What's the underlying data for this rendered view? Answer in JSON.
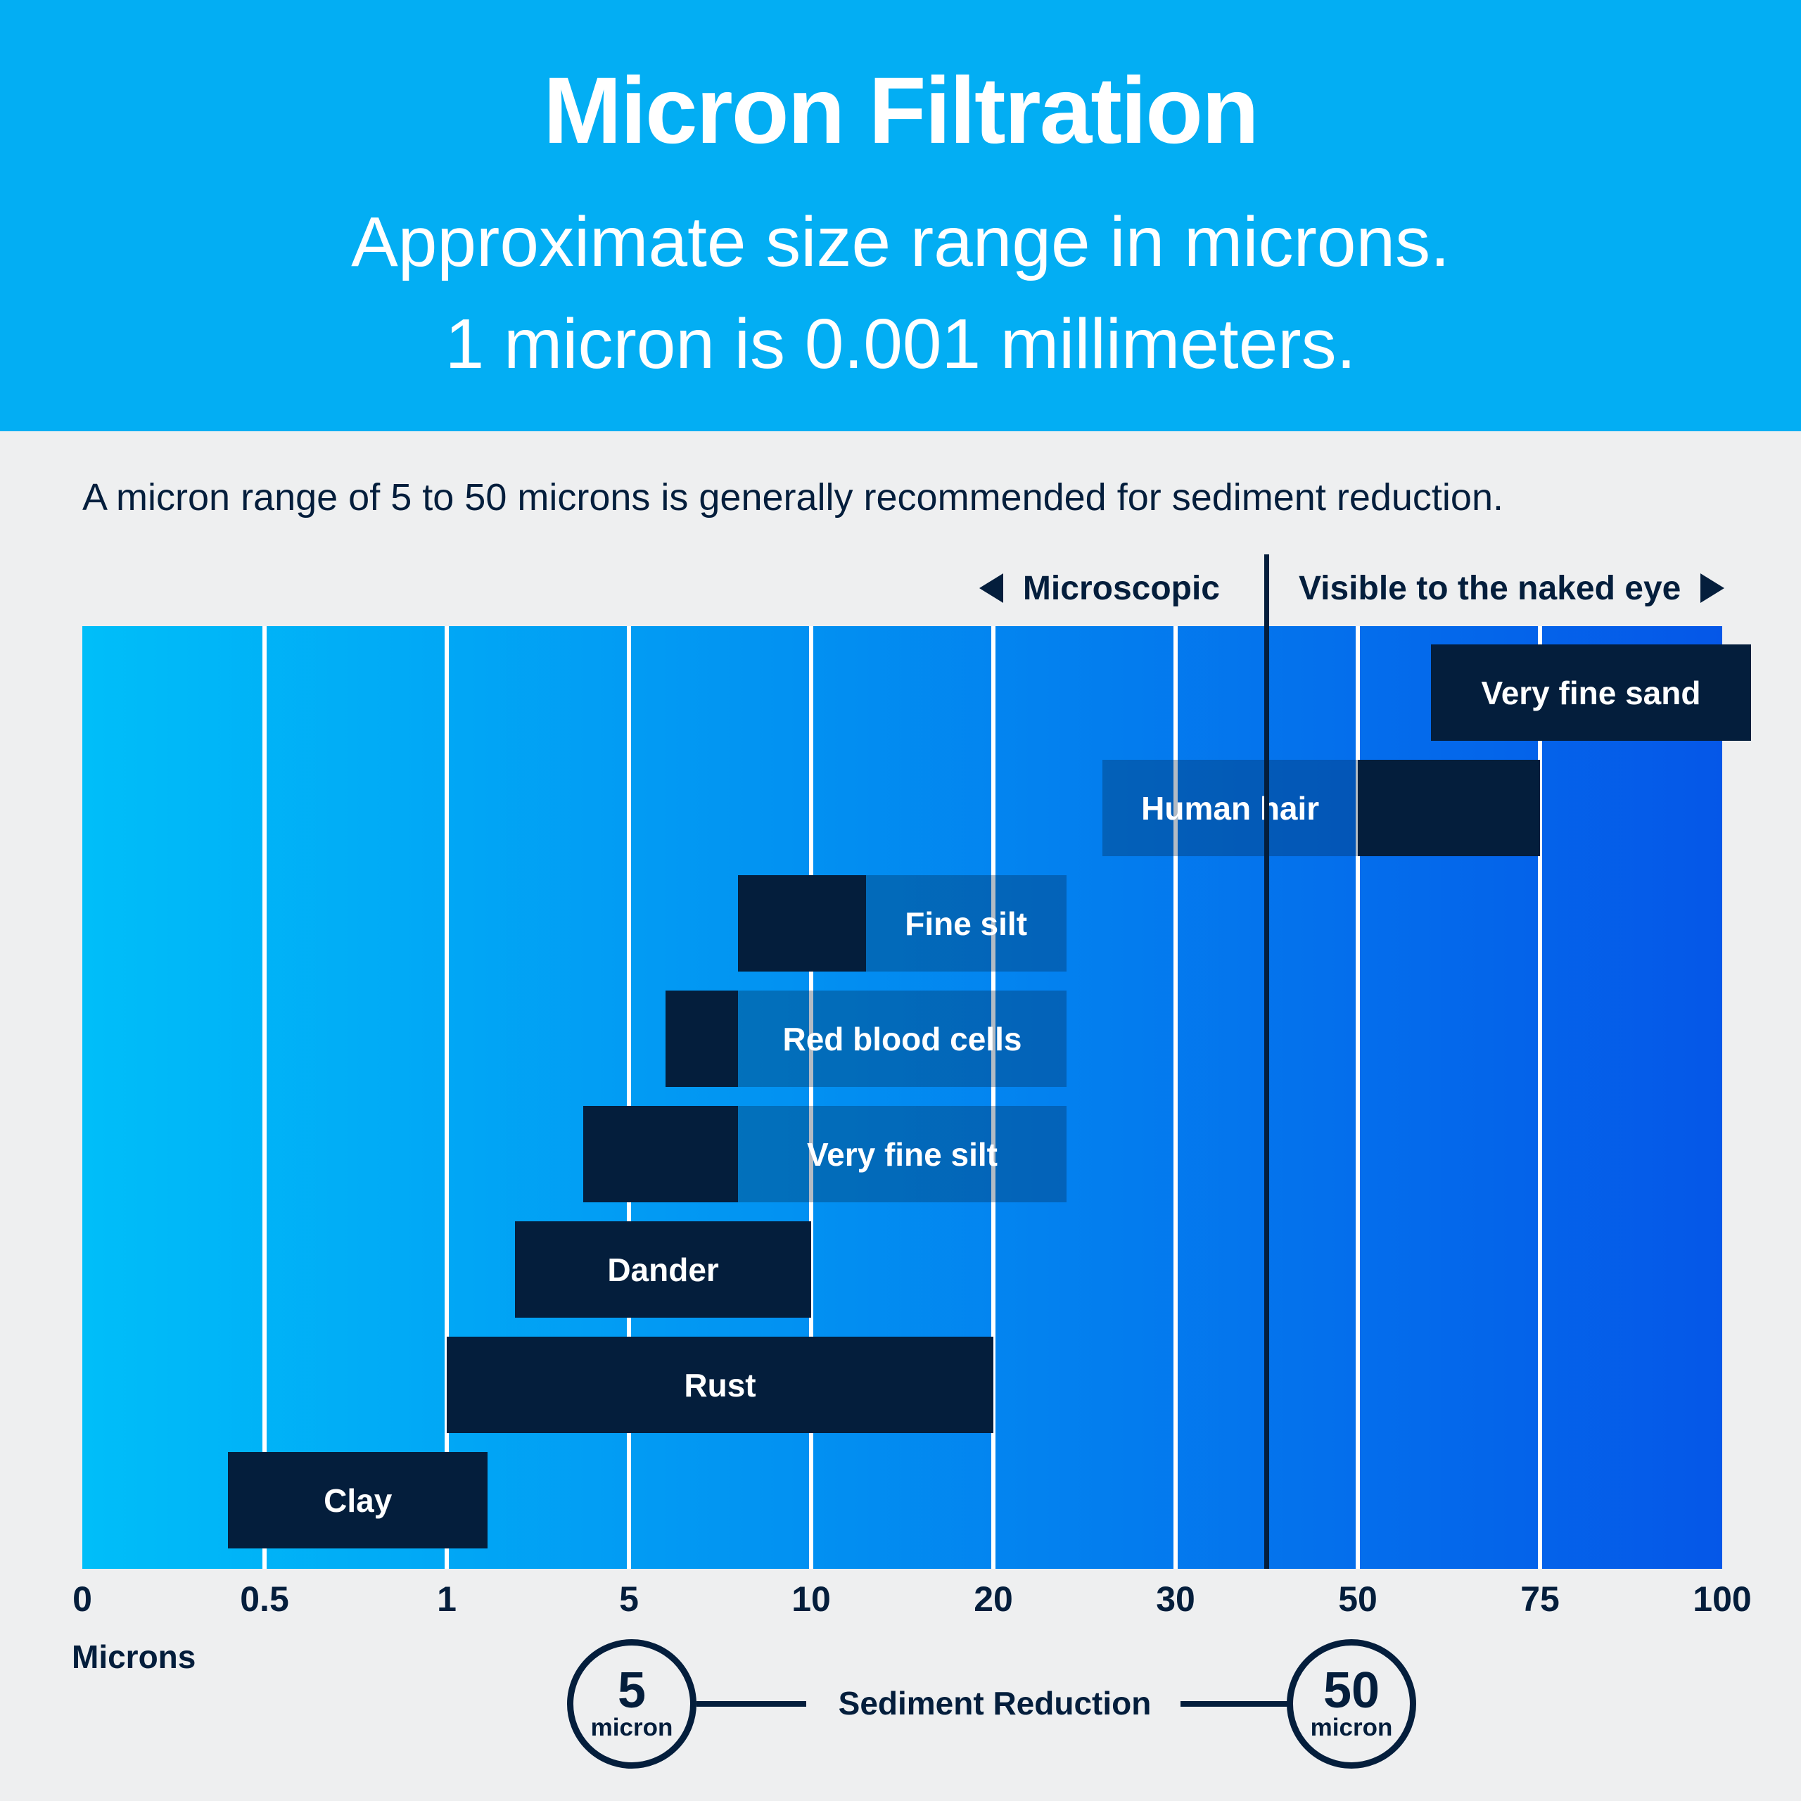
{
  "header": {
    "title": "Micron Filtration",
    "subtitle_line1": "Approximate size range in microns.",
    "subtitle_line2": "1 micron is 0.001 millimeters."
  },
  "intro": "A micron range of 5 to 50 microns is generally recommended for sediment reduction.",
  "legend": {
    "microscopic_label": "Microscopic",
    "visible_label": "Visible to the naked eye",
    "divider_value_microns": 40
  },
  "chart_data": {
    "type": "bar",
    "orientation": "horizontal-range",
    "unit": "microns",
    "title": "Micron Filtration",
    "axis_ticks": [
      0,
      0.5,
      1,
      5,
      10,
      20,
      30,
      50,
      75,
      100
    ],
    "axis_tick_labels": [
      "0",
      "0.5",
      "1",
      "5",
      "10",
      "20",
      "30",
      "50",
      "75",
      "100"
    ],
    "axis_unit_label": "Microns",
    "scale_note": "tick marks equally spaced, piecewise-linear between ticks",
    "items": [
      {
        "label": "Very fine sand",
        "range_microns": [
          60,
          104
        ],
        "label_plate_microns": null,
        "label_in": "solid"
      },
      {
        "label": "Human hair",
        "range_microns": [
          50,
          75
        ],
        "label_plate_microns": [
          26,
          50
        ],
        "label_in": "plate"
      },
      {
        "label": "Fine silt",
        "range_microns": [
          8,
          13
        ],
        "label_plate_microns": [
          13,
          24
        ],
        "label_in": "plate"
      },
      {
        "label": "Red blood cells",
        "range_microns": [
          6,
          8
        ],
        "label_plate_microns": [
          8,
          24
        ],
        "label_in": "plate"
      },
      {
        "label": "Very fine silt",
        "range_microns": [
          4,
          8
        ],
        "label_plate_microns": [
          8,
          24
        ],
        "label_in": "plate"
      },
      {
        "label": "Dander",
        "range_microns": [
          2.5,
          10
        ],
        "label_plate_microns": null,
        "label_in": "solid"
      },
      {
        "label": "Rust",
        "range_microns": [
          1,
          20
        ],
        "label_plate_microns": null,
        "label_in": "solid"
      },
      {
        "label": "Clay",
        "range_microns": [
          0.4,
          1.9
        ],
        "label_plate_microns": null,
        "label_in": "solid"
      }
    ]
  },
  "footer": {
    "left_circle": {
      "value": "5",
      "unit": "micron"
    },
    "connector_label": "Sediment Reduction",
    "right_circle": {
      "value": "50",
      "unit": "micron"
    }
  },
  "colors": {
    "header_bg": "#03AEF3",
    "page_bg": "#EEEFF0",
    "navy": "#041E3C",
    "chart_gradient_left": "#00BEF9",
    "chart_gradient_right": "#0557E8",
    "gridline": "#FFFFFF",
    "plate_overlay": "rgba(4,30,60,0.30)",
    "white": "#FFFFFF"
  }
}
